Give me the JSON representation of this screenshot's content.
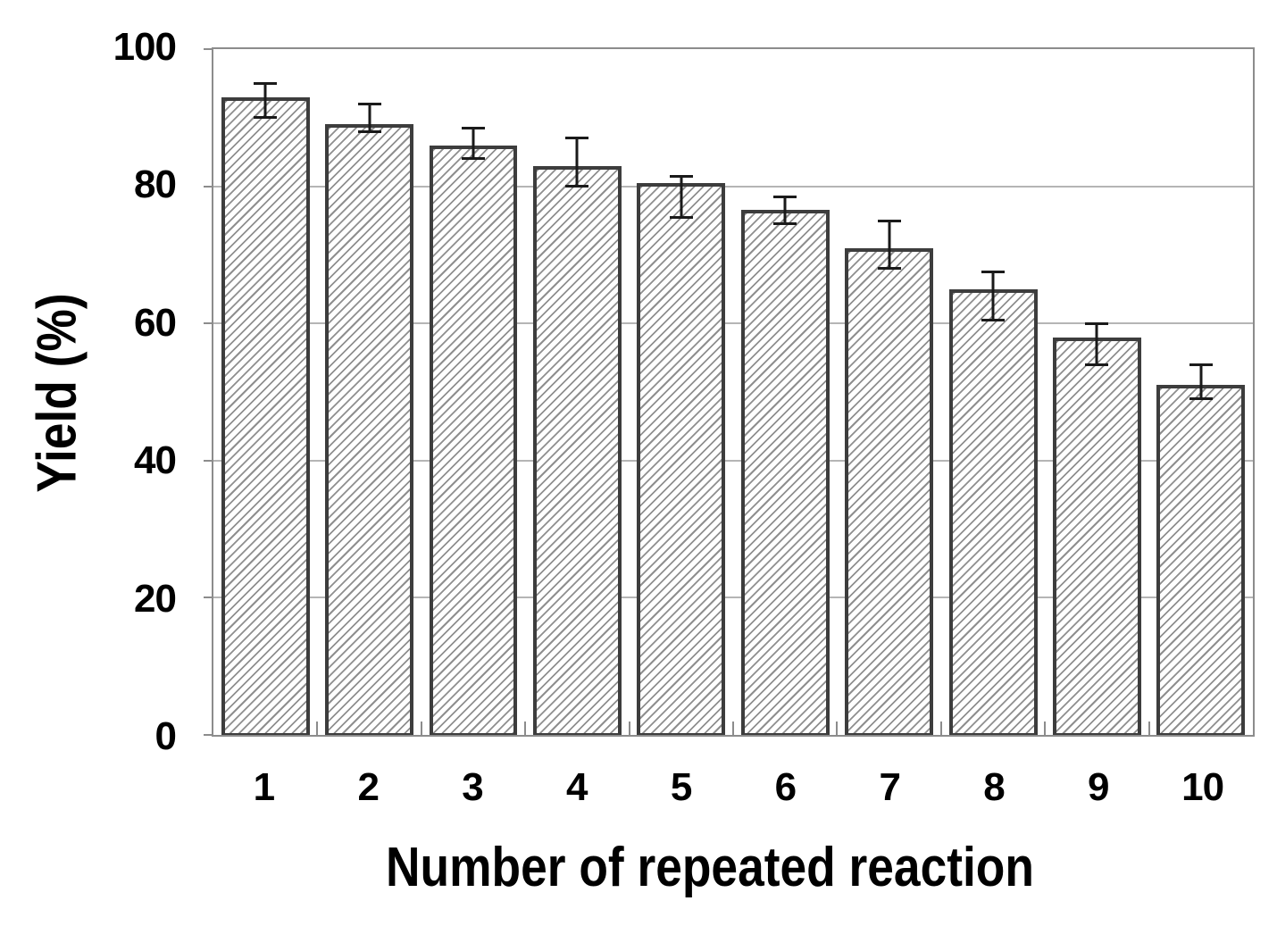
{
  "chart_data": {
    "type": "bar",
    "title": "",
    "xlabel": "Number of repeated reaction",
    "ylabel": "Yield (%)",
    "categories": [
      "1",
      "2",
      "3",
      "4",
      "5",
      "6",
      "7",
      "8",
      "9",
      "10"
    ],
    "values": [
      93,
      89,
      86,
      83,
      80.5,
      76.5,
      71,
      65,
      58,
      51
    ],
    "error_top": [
      95,
      92,
      88.5,
      87,
      81.5,
      78.5,
      75,
      67.5,
      60,
      54
    ],
    "error_bottom": [
      90,
      88,
      84,
      80,
      75.5,
      74.5,
      68,
      60.5,
      54,
      49
    ],
    "ylim": [
      0,
      100
    ],
    "yticks": [
      0,
      20,
      40,
      60,
      80,
      100
    ],
    "grid": "horizontal",
    "legend": "none",
    "bar_style": "white fill with gray diagonal hatch, black error bars"
  },
  "colors": {
    "bar_fill": "#ffffff",
    "bar_hatch": "#8f8f8f",
    "bar_border": "#3d3d3d",
    "error_bar": "#1a1a1a",
    "gridline": "#b5b5b5",
    "axis_frame": "#8c8c8c",
    "text": "#000000",
    "background": "#ffffff"
  }
}
